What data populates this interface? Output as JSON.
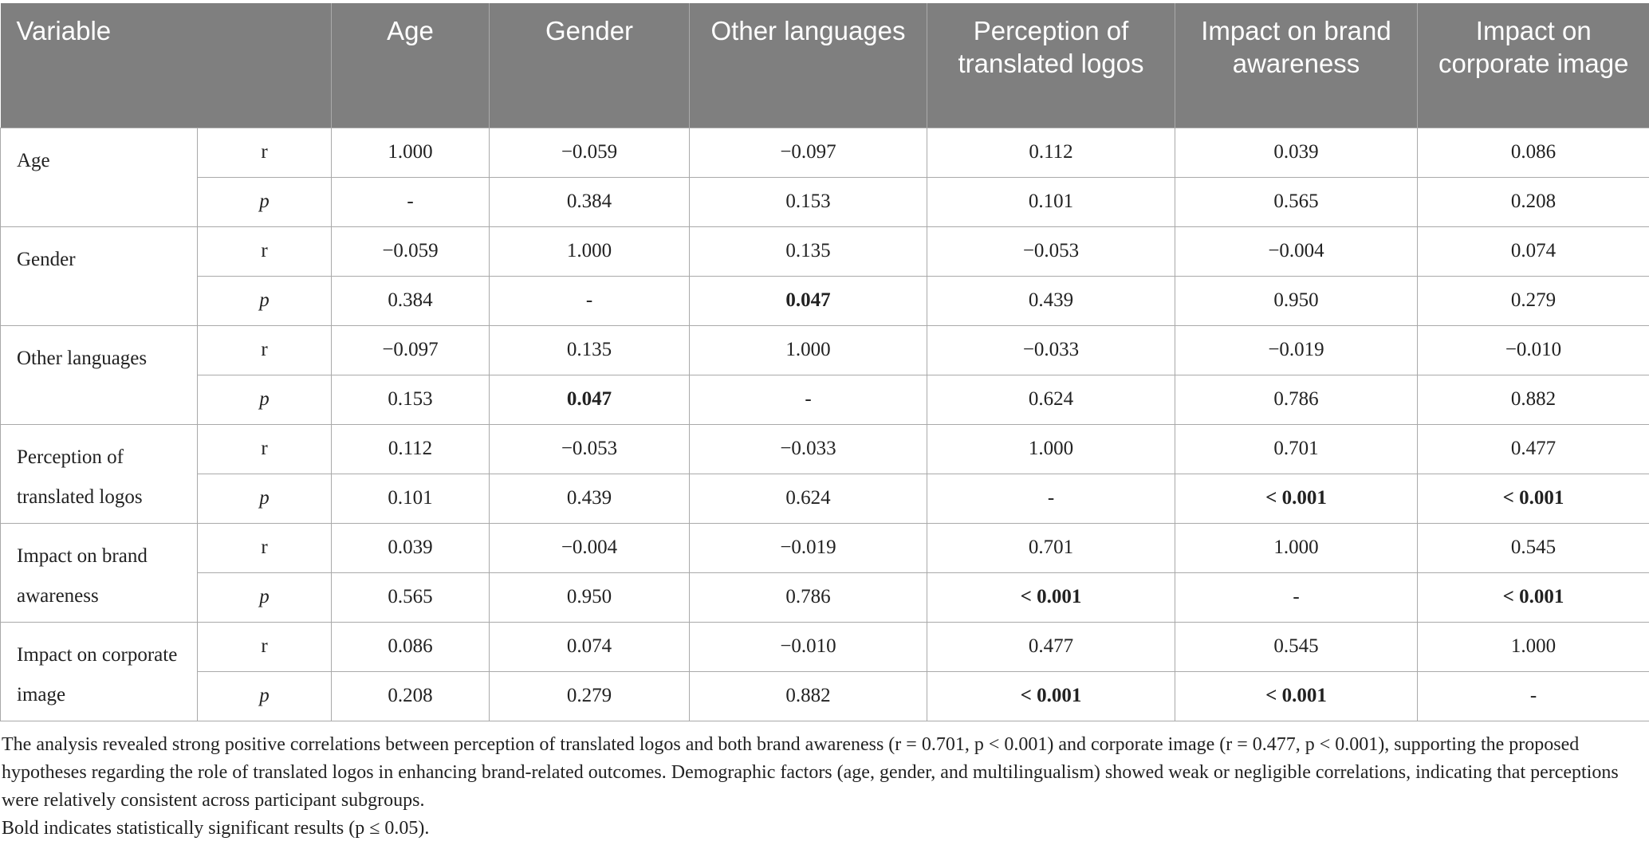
{
  "table": {
    "header": [
      "Variable",
      "Age",
      "Gender",
      "Other languages",
      "Perception of translated logos",
      "Impact on brand awareness",
      "Impact on corporate image"
    ],
    "rows": [
      {
        "variable": "Age",
        "stats": [
          {
            "label": "r",
            "values": [
              "1.000",
              "−0.059",
              "−0.097",
              "0.112",
              "0.039",
              "0.086"
            ]
          },
          {
            "label": "p",
            "values": [
              "-",
              "0.384",
              "0.153",
              "0.101",
              "0.565",
              "0.208"
            ]
          }
        ]
      },
      {
        "variable": "Gender",
        "stats": [
          {
            "label": "r",
            "values": [
              "−0.059",
              "1.000",
              "0.135",
              "−0.053",
              "−0.004",
              "0.074"
            ]
          },
          {
            "label": "p",
            "values": [
              "0.384",
              "-",
              {
                "text": "0.047",
                "bold": true
              },
              "0.439",
              "0.950",
              "0.279"
            ]
          }
        ]
      },
      {
        "variable": "Other languages",
        "stats": [
          {
            "label": "r",
            "values": [
              "−0.097",
              "0.135",
              "1.000",
              "−0.033",
              "−0.019",
              "−0.010"
            ]
          },
          {
            "label": "p",
            "values": [
              "0.153",
              {
                "text": "0.047",
                "bold": true
              },
              "-",
              "0.624",
              "0.786",
              "0.882"
            ]
          }
        ]
      },
      {
        "variable": "Perception of translated logos",
        "stats": [
          {
            "label": "r",
            "values": [
              "0.112",
              "−0.053",
              "−0.033",
              "1.000",
              "0.701",
              "0.477"
            ]
          },
          {
            "label": "p",
            "values": [
              "0.101",
              "0.439",
              "0.624",
              "-",
              {
                "text": "< 0.001",
                "bold": true
              },
              {
                "text": "< 0.001",
                "bold": true
              }
            ]
          }
        ]
      },
      {
        "variable": "Impact on brand awareness",
        "stats": [
          {
            "label": "r",
            "values": [
              "0.039",
              "−0.004",
              "−0.019",
              "0.701",
              "1.000",
              "0.545"
            ]
          },
          {
            "label": "p",
            "values": [
              "0.565",
              "0.950",
              "0.786",
              {
                "text": "< 0.001",
                "bold": true
              },
              "-",
              {
                "text": "< 0.001",
                "bold": true
              }
            ]
          }
        ]
      },
      {
        "variable": "Impact on corporate image",
        "stats": [
          {
            "label": "r",
            "values": [
              "0.086",
              "0.074",
              "−0.010",
              "0.477",
              "0.545",
              "1.000"
            ]
          },
          {
            "label": "p",
            "values": [
              "0.208",
              "0.279",
              "0.882",
              {
                "text": "< 0.001",
                "bold": true
              },
              {
                "text": "< 0.001",
                "bold": true
              },
              "-"
            ]
          }
        ]
      }
    ]
  },
  "footnotes": [
    "The analysis revealed strong positive correlations between perception of translated logos and both brand awareness (r = 0.701, p < 0.001) and corporate image (r = 0.477, p < 0.001), supporting the proposed hypotheses regarding the role of translated logos in enhancing brand-related outcomes. Demographic factors (age, gender, and multilingualism) showed weak or negligible correlations, indicating that perceptions were relatively consistent across participant subgroups.",
    "Bold indicates statistically significant results (p ≤ 0.05)."
  ]
}
